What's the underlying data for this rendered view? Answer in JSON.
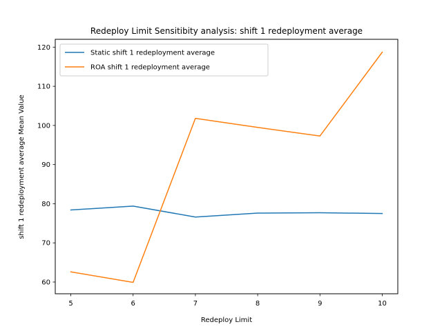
{
  "chart_data": {
    "type": "line",
    "title": "Redeploy Limit Sensitibity analysis: shift 1 redeployment average",
    "xlabel": "Redeploy Limit",
    "ylabel": "shift 1 redeployment average Mean Value",
    "x": [
      5,
      6,
      7,
      8,
      9,
      10
    ],
    "xlim": [
      4.75,
      10.25
    ],
    "ylim": [
      57,
      122
    ],
    "xticks": [
      5,
      6,
      7,
      8,
      9,
      10
    ],
    "yticks": [
      60,
      70,
      80,
      90,
      100,
      110,
      120
    ],
    "grid": false,
    "legend_position": "top-left",
    "series": [
      {
        "name": "Static shift 1 redeployment average",
        "color": "#1f77b4",
        "values": [
          78.4,
          79.4,
          76.6,
          77.6,
          77.7,
          77.5
        ]
      },
      {
        "name": "ROA shift 1 redeployment average",
        "color": "#ff7f0e",
        "values": [
          62.6,
          59.9,
          101.8,
          99.5,
          97.3,
          118.7
        ]
      }
    ]
  }
}
